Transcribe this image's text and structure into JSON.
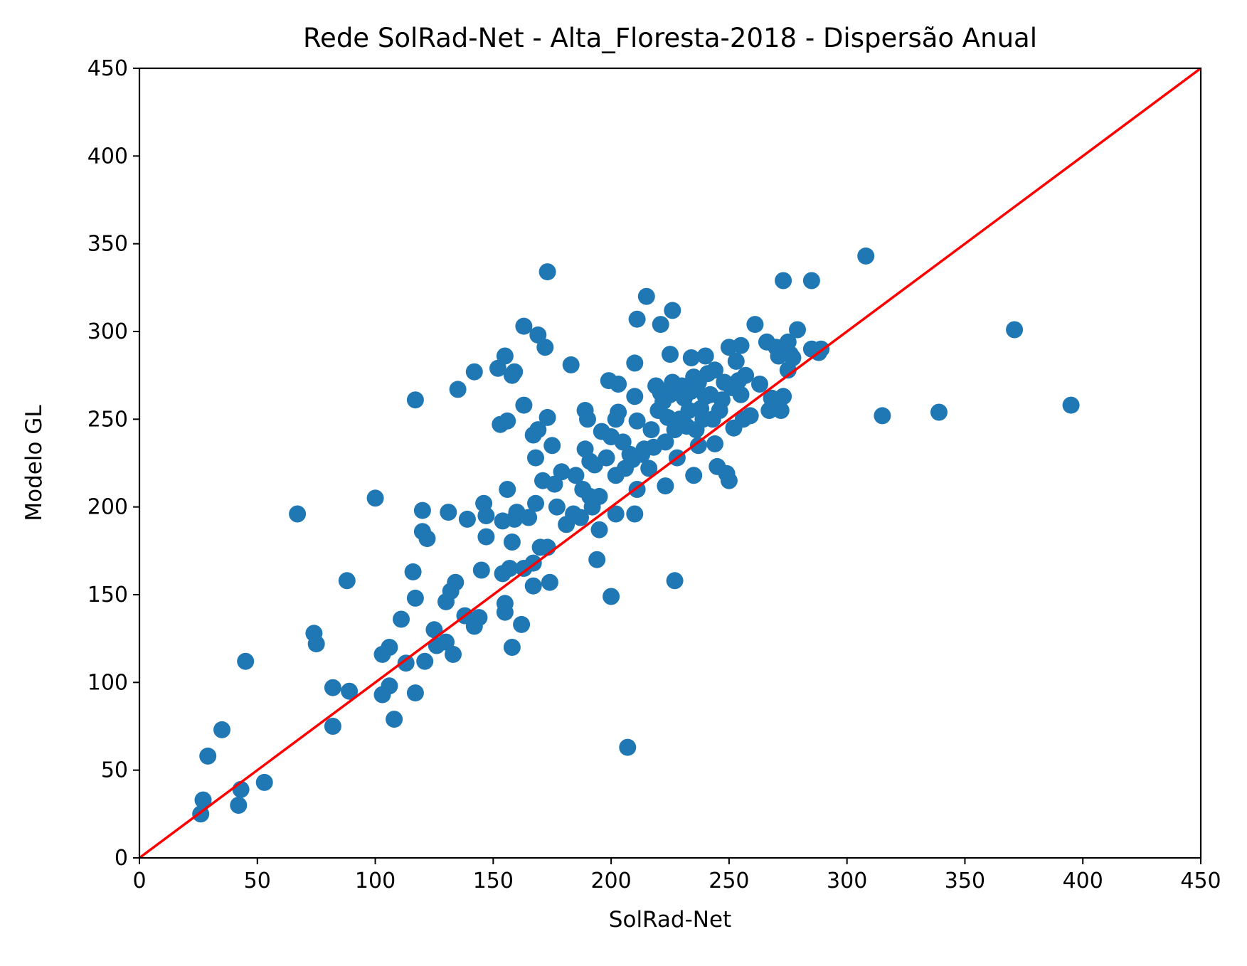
{
  "chart_data": {
    "type": "scatter",
    "title": "Rede SolRad-Net - Alta_Floresta-2018 - Dispersão Anual",
    "xlabel": "SolRad-Net",
    "ylabel": "Modelo GL",
    "xlim": [
      0,
      450
    ],
    "ylim": [
      0,
      450
    ],
    "xticks": [
      "0",
      "50",
      "100",
      "150",
      "200",
      "250",
      "300",
      "350",
      "400",
      "450"
    ],
    "yticks": [
      "0",
      "50",
      "100",
      "150",
      "200",
      "250",
      "300",
      "350",
      "400",
      "450"
    ],
    "grid": false,
    "legend": "none",
    "point_color": "#1f77b4",
    "line_color": "#ff0000",
    "reference_line": {
      "from": [
        0,
        0
      ],
      "to": [
        450,
        450
      ]
    },
    "series": [
      {
        "points": [
          [
            26,
            25
          ],
          [
            27,
            33
          ],
          [
            29,
            58
          ],
          [
            35,
            73
          ],
          [
            42,
            30
          ],
          [
            43,
            39
          ],
          [
            45,
            112
          ],
          [
            53,
            43
          ],
          [
            67,
            196
          ],
          [
            74,
            128
          ],
          [
            75,
            122
          ],
          [
            82,
            75
          ],
          [
            82,
            97
          ],
          [
            88,
            158
          ],
          [
            89,
            95
          ],
          [
            100,
            205
          ],
          [
            103,
            116
          ],
          [
            103,
            93
          ],
          [
            106,
            98
          ],
          [
            106,
            120
          ],
          [
            108,
            79
          ],
          [
            111,
            136
          ],
          [
            113,
            111
          ],
          [
            116,
            163
          ],
          [
            117,
            148
          ],
          [
            117,
            261
          ],
          [
            117,
            94
          ],
          [
            120,
            198
          ],
          [
            120,
            186
          ],
          [
            121,
            112
          ],
          [
            122,
            182
          ],
          [
            125,
            130
          ],
          [
            126,
            121
          ],
          [
            130,
            123
          ],
          [
            130,
            146
          ],
          [
            131,
            197
          ],
          [
            132,
            152
          ],
          [
            133,
            116
          ],
          [
            134,
            157
          ],
          [
            135,
            267
          ],
          [
            138,
            138
          ],
          [
            139,
            193
          ],
          [
            142,
            132
          ],
          [
            142,
            277
          ],
          [
            144,
            137
          ],
          [
            145,
            164
          ],
          [
            146,
            202
          ],
          [
            147,
            183
          ],
          [
            147,
            195
          ],
          [
            152,
            279
          ],
          [
            153,
            247
          ],
          [
            154,
            192
          ],
          [
            154,
            162
          ],
          [
            155,
            286
          ],
          [
            155,
            140
          ],
          [
            155,
            145
          ],
          [
            156,
            249
          ],
          [
            156,
            210
          ],
          [
            157,
            165
          ],
          [
            158,
            120
          ],
          [
            158,
            180
          ],
          [
            158,
            275
          ],
          [
            159,
            277
          ],
          [
            159,
            193
          ],
          [
            160,
            197
          ],
          [
            162,
            133
          ],
          [
            163,
            303
          ],
          [
            163,
            165
          ],
          [
            163,
            258
          ],
          [
            165,
            194
          ],
          [
            167,
            155
          ],
          [
            167,
            241
          ],
          [
            167,
            168
          ],
          [
            168,
            202
          ],
          [
            168,
            228
          ],
          [
            169,
            244
          ],
          [
            169,
            298
          ],
          [
            170,
            177
          ],
          [
            171,
            215
          ],
          [
            172,
            291
          ],
          [
            173,
            251
          ],
          [
            173,
            334
          ],
          [
            173,
            177
          ],
          [
            174,
            157
          ],
          [
            175,
            235
          ],
          [
            176,
            213
          ],
          [
            177,
            200
          ],
          [
            179,
            220
          ],
          [
            181,
            190
          ],
          [
            183,
            281
          ],
          [
            184,
            196
          ],
          [
            185,
            218
          ],
          [
            187,
            194
          ],
          [
            188,
            210
          ],
          [
            189,
            255
          ],
          [
            189,
            233
          ],
          [
            190,
            250
          ],
          [
            191,
            206
          ],
          [
            191,
            226
          ],
          [
            192,
            200
          ],
          [
            193,
            224
          ],
          [
            194,
            170
          ],
          [
            195,
            187
          ],
          [
            195,
            206
          ],
          [
            196,
            243
          ],
          [
            198,
            228
          ],
          [
            199,
            272
          ],
          [
            200,
            149
          ],
          [
            200,
            240
          ],
          [
            202,
            218
          ],
          [
            202,
            196
          ],
          [
            202,
            250
          ],
          [
            203,
            270
          ],
          [
            203,
            254
          ],
          [
            205,
            237
          ],
          [
            206,
            222
          ],
          [
            207,
            63
          ],
          [
            208,
            230
          ],
          [
            209,
            227
          ],
          [
            210,
            282
          ],
          [
            210,
            263
          ],
          [
            210,
            196
          ],
          [
            211,
            249
          ],
          [
            211,
            210
          ],
          [
            211,
            307
          ],
          [
            213,
            230
          ],
          [
            214,
            233
          ],
          [
            215,
            320
          ],
          [
            216,
            222
          ],
          [
            217,
            244
          ],
          [
            218,
            234
          ],
          [
            219,
            269
          ],
          [
            220,
            255
          ],
          [
            221,
            265
          ],
          [
            221,
            304
          ],
          [
            222,
            260
          ],
          [
            223,
            212
          ],
          [
            223,
            237
          ],
          [
            224,
            251
          ],
          [
            225,
            264
          ],
          [
            225,
            287
          ],
          [
            226,
            312
          ],
          [
            226,
            271
          ],
          [
            227,
            158
          ],
          [
            227,
            244
          ],
          [
            228,
            228
          ],
          [
            229,
            250
          ],
          [
            230,
            269
          ],
          [
            231,
            262
          ],
          [
            232,
            246
          ],
          [
            233,
            255
          ],
          [
            234,
            266
          ],
          [
            234,
            285
          ],
          [
            235,
            274
          ],
          [
            235,
            218
          ],
          [
            236,
            244
          ],
          [
            237,
            235
          ],
          [
            237,
            271
          ],
          [
            238,
            256
          ],
          [
            239,
            250
          ],
          [
            240,
            263
          ],
          [
            240,
            286
          ],
          [
            241,
            276
          ],
          [
            242,
            264
          ],
          [
            243,
            250
          ],
          [
            244,
            278
          ],
          [
            244,
            236
          ],
          [
            245,
            223
          ],
          [
            246,
            255
          ],
          [
            247,
            261
          ],
          [
            248,
            271
          ],
          [
            249,
            219
          ],
          [
            250,
            291
          ],
          [
            250,
            215
          ],
          [
            251,
            268
          ],
          [
            252,
            245
          ],
          [
            253,
            283
          ],
          [
            254,
            272
          ],
          [
            255,
            264
          ],
          [
            255,
            292
          ],
          [
            256,
            250
          ],
          [
            257,
            275
          ],
          [
            259,
            252
          ],
          [
            261,
            304
          ],
          [
            263,
            270
          ],
          [
            266,
            294
          ],
          [
            267,
            255
          ],
          [
            268,
            262
          ],
          [
            270,
            291
          ],
          [
            271,
            286
          ],
          [
            272,
            255
          ],
          [
            273,
            263
          ],
          [
            273,
            329
          ],
          [
            275,
            294
          ],
          [
            275,
            278
          ],
          [
            276,
            287
          ],
          [
            277,
            285
          ],
          [
            279,
            301
          ],
          [
            285,
            290
          ],
          [
            285,
            329
          ],
          [
            288,
            288
          ],
          [
            289,
            290
          ],
          [
            308,
            343
          ],
          [
            315,
            252
          ],
          [
            339,
            254
          ],
          [
            371,
            301
          ],
          [
            395,
            258
          ]
        ]
      }
    ]
  }
}
